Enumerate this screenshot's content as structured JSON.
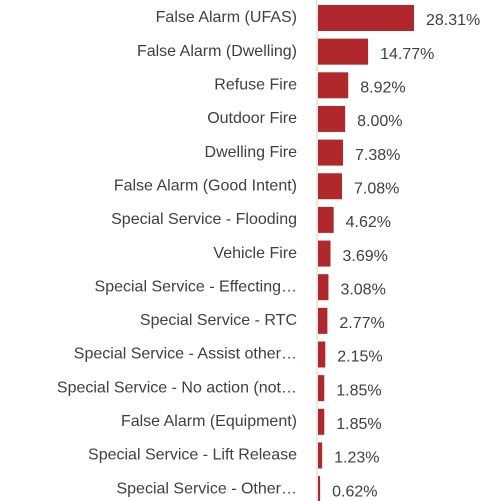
{
  "chart_data": {
    "type": "bar",
    "orientation": "horizontal",
    "categories": [
      "False Alarm (UFAS)",
      "False Alarm (Dwelling)",
      "Refuse Fire",
      "Outdoor Fire",
      "Dwelling Fire",
      "False Alarm (Good Intent)",
      "Special Service - Flooding",
      "Vehicle Fire",
      "Special Service - Effecting…",
      "Special Service - RTC",
      "Special Service - Assist other…",
      "Special Service - No action (not…",
      "False Alarm (Equipment)",
      "Special Service - Lift Release",
      "Special Service - Other…"
    ],
    "values": [
      28.31,
      14.77,
      8.92,
      8.0,
      7.38,
      7.08,
      4.62,
      3.69,
      3.08,
      2.77,
      2.15,
      1.85,
      1.85,
      1.23,
      0.62
    ],
    "value_labels": [
      "28.31%",
      "14.77%",
      "8.92%",
      "8.00%",
      "7.38%",
      "7.08%",
      "4.62%",
      "3.69%",
      "3.08%",
      "2.77%",
      "2.15%",
      "1.85%",
      "1.85%",
      "1.23%",
      "0.62%"
    ],
    "color": "#b0272c"
  }
}
